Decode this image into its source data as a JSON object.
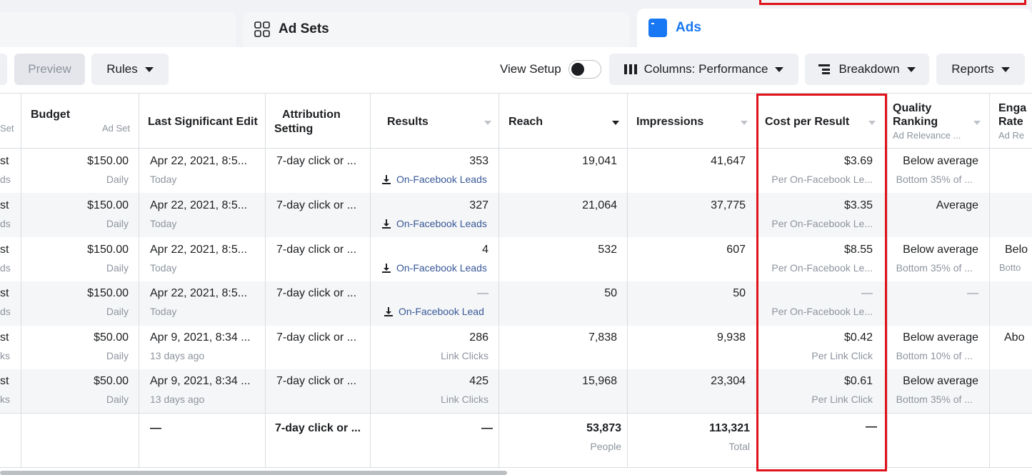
{
  "tabs": {
    "adsets_label": "Ad Sets",
    "ads_label": "Ads"
  },
  "toolbar": {
    "preview_label": "Preview",
    "rules_label": "Rules",
    "view_setup_label": "View Setup",
    "columns_label": "Columns: Performance",
    "breakdown_label": "Breakdown",
    "reports_label": "Reports"
  },
  "headers": {
    "set_sub": "Set",
    "budget": "Budget",
    "budget_sub": "Ad Set",
    "last_edit": "Last Significant Edit",
    "attribution_line1": "Attribution",
    "attribution_line2": "Setting",
    "results": "Results",
    "reach": "Reach",
    "impressions": "Impressions",
    "cost_per_result": "Cost per Result",
    "quality_line1": "Quality",
    "quality_line2": "Ranking",
    "quality_sub": "Ad Relevance ...",
    "engagement_line1": "Enga",
    "engagement_line2": "Rate",
    "engagement_sub": "Ad Re"
  },
  "rows": [
    {
      "c0a": "st",
      "c0b": "ds",
      "budget": "$150.00",
      "budget_sub": "Daily",
      "edit": "Apr 22, 2021, 8:5...",
      "edit_sub": "Today",
      "attribution": "7-day click or ...",
      "results": "353",
      "results_sub": "On-Facebook Leads",
      "reach": "19,041",
      "impressions": "41,647",
      "cpr": "$3.69",
      "cpr_sub": "Per On-Facebook Le...",
      "quality": "Below average",
      "quality_sub": "Bottom 35% of ...",
      "eng": "",
      "eng_sub": ""
    },
    {
      "c0a": "st",
      "c0b": "ds",
      "budget": "$150.00",
      "budget_sub": "Daily",
      "edit": "Apr 22, 2021, 8:5...",
      "edit_sub": "Today",
      "attribution": "7-day click or ...",
      "results": "327",
      "results_sub": "On-Facebook Leads",
      "reach": "21,064",
      "impressions": "37,775",
      "cpr": "$3.35",
      "cpr_sub": "Per On-Facebook Le...",
      "quality": "Average",
      "quality_sub": "",
      "eng": "",
      "eng_sub": ""
    },
    {
      "c0a": "st",
      "c0b": "ds",
      "budget": "$150.00",
      "budget_sub": "Daily",
      "edit": "Apr 22, 2021, 8:5...",
      "edit_sub": "Today",
      "attribution": "7-day click or ...",
      "results": "4",
      "results_sub": "On-Facebook Leads",
      "reach": "532",
      "impressions": "607",
      "cpr": "$8.55",
      "cpr_sub": "Per On-Facebook Le...",
      "quality": "Below average",
      "quality_sub": "Bottom 35% of ...",
      "eng": "Belo",
      "eng_sub": "Botto"
    },
    {
      "c0a": "st",
      "c0b": "ds",
      "budget": "$150.00",
      "budget_sub": "Daily",
      "edit": "Apr 22, 2021, 8:5...",
      "edit_sub": "Today",
      "attribution": "7-day click or ...",
      "results": "—",
      "results_sub": "On-Facebook Lead",
      "reach": "50",
      "impressions": "50",
      "cpr": "—",
      "cpr_sub": "Per On-Facebook Le...",
      "quality": "—",
      "quality_sub": "",
      "eng": "",
      "eng_sub": ""
    },
    {
      "c0a": "st",
      "c0b": "ks",
      "budget": "$50.00",
      "budget_sub": "Daily",
      "edit": "Apr 9, 2021, 8:34 ...",
      "edit_sub": "13 days ago",
      "attribution": "7-day click or ...",
      "results": "286",
      "results_sub": "Link Clicks",
      "reach": "7,838",
      "impressions": "9,938",
      "cpr": "$0.42",
      "cpr_sub": "Per Link Click",
      "quality": "Below average",
      "quality_sub": "Bottom 10% of ...",
      "eng": "Abo",
      "eng_sub": ""
    },
    {
      "c0a": "st",
      "c0b": "ks",
      "budget": "$50.00",
      "budget_sub": "Daily",
      "edit": "Apr 9, 2021, 8:34 ...",
      "edit_sub": "13 days ago",
      "attribution": "7-day click or ...",
      "results": "425",
      "results_sub": "Link Clicks",
      "reach": "15,968",
      "impressions": "23,304",
      "cpr": "$0.61",
      "cpr_sub": "Per Link Click",
      "quality": "Below average",
      "quality_sub": "Bottom 35% of ...",
      "eng": "",
      "eng_sub": ""
    }
  ],
  "totals": {
    "edit": "—",
    "attribution": "7-day click or ...",
    "results": "—",
    "reach": "53,873",
    "reach_sub": "People",
    "impressions": "113,321",
    "impressions_sub": "Total",
    "cpr": "—"
  },
  "colors": {
    "accent": "#1877f2",
    "link": "#385898",
    "highlight": "#e0121b"
  }
}
